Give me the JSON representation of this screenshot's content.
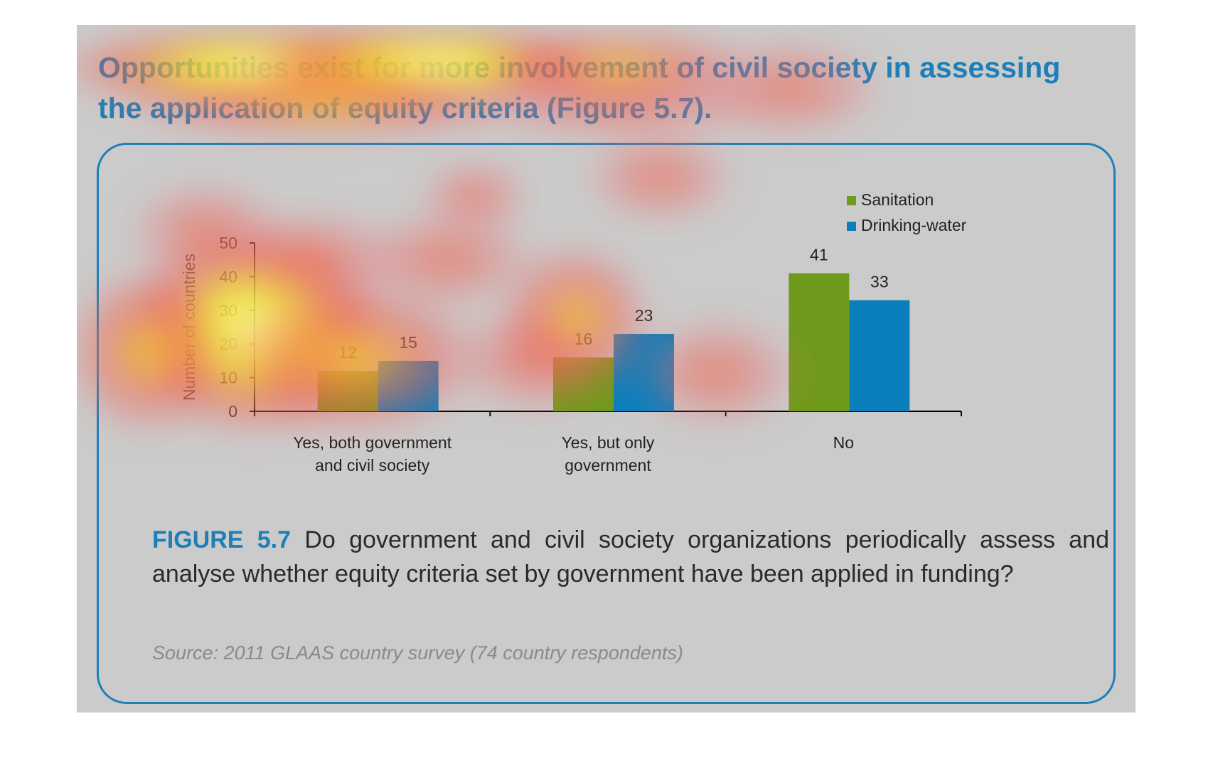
{
  "headline": "Opportunities exist for more involvement of civil society in assessing the application of equity criteria (Figure 5.7).",
  "caption": {
    "label": "FIGURE 5.7",
    "text": "Do government and civil society organizations periodically assess and analyse whether equity criteria set by government have been applied in funding?"
  },
  "source": "Source: 2011 GLAAS country survey (74 country respondents)",
  "colors": {
    "accent": "#1e7fb8",
    "sanitation": "#6f9a1c",
    "drinking_water": "#0a7fbc",
    "background": "#cbcbcb"
  },
  "chart_data": {
    "type": "bar",
    "categories": [
      "Yes, both government and civil society",
      "Yes, but only government",
      "No"
    ],
    "category_lines": [
      [
        "Yes, both government",
        "and civil society"
      ],
      [
        "Yes, but only",
        "government"
      ],
      [
        "No"
      ]
    ],
    "series": [
      {
        "name": "Sanitation",
        "values": [
          12,
          16,
          41
        ]
      },
      {
        "name": "Drinking-water",
        "values": [
          15,
          23,
          33
        ]
      }
    ],
    "ylabel": "Number of countries",
    "ylim": [
      0,
      50
    ],
    "yticks": [
      0,
      10,
      20,
      30,
      40,
      50
    ],
    "grid": false,
    "legend": "top-right",
    "data_labels": true,
    "overlay": "attention heatmap"
  }
}
